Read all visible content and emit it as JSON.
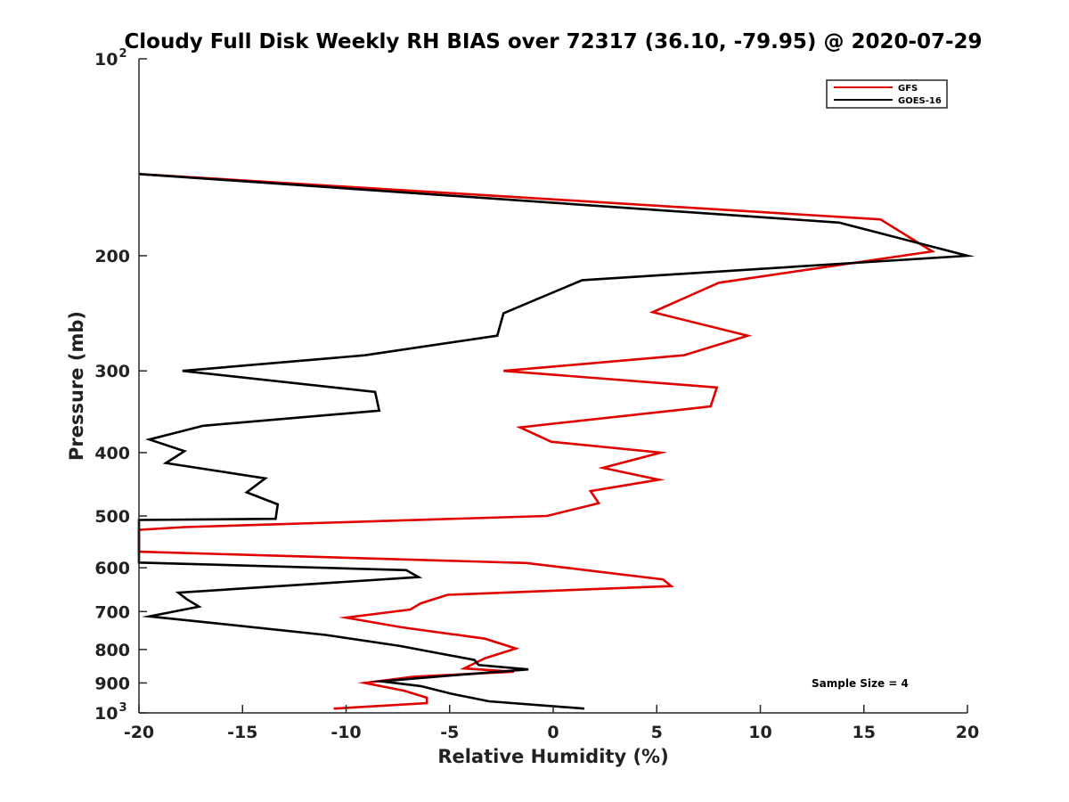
{
  "chart_data": {
    "type": "line",
    "title": "Cloudy Full Disk Weekly RH BIAS over 72317 (36.10, -79.95) @ 2020-07-29",
    "xlabel": "Relative Humidity (%)",
    "ylabel": "Pressure (mb)",
    "xlim": [
      -20,
      20
    ],
    "ylim": [
      100,
      1000
    ],
    "yscale": "log",
    "y_reversed": true,
    "x_ticks": [
      "-20",
      "-15",
      "-10",
      "-5",
      "0",
      "5",
      "10",
      "15",
      "20"
    ],
    "y_ticks": [
      {
        "value": 100,
        "base": "10",
        "exp": "2"
      },
      {
        "value": 200,
        "label": "200"
      },
      {
        "value": 300,
        "label": "300"
      },
      {
        "value": 400,
        "label": "400"
      },
      {
        "value": 500,
        "label": "500"
      },
      {
        "value": 600,
        "label": "600"
      },
      {
        "value": 700,
        "label": "700"
      },
      {
        "value": 800,
        "label": "800"
      },
      {
        "value": 900,
        "label": "900"
      },
      {
        "value": 1000,
        "base": "10",
        "exp": "3"
      }
    ],
    "legend_position": "top-right",
    "annotation": "Sample Size = 4",
    "series": [
      {
        "name": "GFS",
        "color": "#e00000",
        "points": [
          [
            -20,
            150
          ],
          [
            15.8,
            176
          ],
          [
            18.3,
            197
          ],
          [
            8.0,
            220
          ],
          [
            4.8,
            244
          ],
          [
            9.4,
            265
          ],
          [
            6.3,
            284
          ],
          [
            -2.4,
            300
          ],
          [
            7.9,
            318
          ],
          [
            7.6,
            340
          ],
          [
            -1.6,
            366
          ],
          [
            -0.1,
            385
          ],
          [
            5.2,
            400
          ],
          [
            2.4,
            422
          ],
          [
            5.1,
            440
          ],
          [
            1.8,
            458
          ],
          [
            2.2,
            478
          ],
          [
            -0.3,
            500
          ],
          [
            -17.8,
            520
          ],
          [
            -20,
            525
          ],
          [
            -20,
            567
          ],
          [
            -1.3,
            590
          ],
          [
            5.3,
            625
          ],
          [
            5.7,
            640
          ],
          [
            -5.1,
            660
          ],
          [
            -6.4,
            680
          ],
          [
            -6.9,
            695
          ],
          [
            -10.0,
            715
          ],
          [
            -7.3,
            740
          ],
          [
            -3.3,
            770
          ],
          [
            -1.8,
            797
          ],
          [
            -3.3,
            825
          ],
          [
            -4.3,
            855
          ],
          [
            -1.9,
            865
          ],
          [
            -6.7,
            880
          ],
          [
            -9.1,
            900
          ],
          [
            -7.2,
            925
          ],
          [
            -6.1,
            948
          ],
          [
            -6.1,
            966
          ],
          [
            -10.6,
            985
          ]
        ]
      },
      {
        "name": "GOES-16",
        "color": "#000000",
        "points": [
          [
            -20,
            150
          ],
          [
            13.8,
            178
          ],
          [
            20.0,
            200
          ],
          [
            1.4,
            218
          ],
          [
            -2.4,
            245
          ],
          [
            -2.7,
            265
          ],
          [
            -9.1,
            284
          ],
          [
            -17.9,
            300
          ],
          [
            -8.6,
            323
          ],
          [
            -8.4,
            345
          ],
          [
            -16.9,
            364
          ],
          [
            -19.5,
            382
          ],
          [
            -17.8,
            398
          ],
          [
            -18.7,
            415
          ],
          [
            -13.9,
            438
          ],
          [
            -14.8,
            460
          ],
          [
            -13.3,
            480
          ],
          [
            -13.4,
            505
          ],
          [
            -20,
            507
          ],
          [
            -20,
            589
          ],
          [
            -7.1,
            605
          ],
          [
            -6.5,
            620
          ],
          [
            -18.1,
            655
          ],
          [
            -17.7,
            670
          ],
          [
            -17.1,
            688
          ],
          [
            -19.5,
            712
          ],
          [
            -16.2,
            730
          ],
          [
            -11.0,
            760
          ],
          [
            -7.4,
            790
          ],
          [
            -3.8,
            830
          ],
          [
            -3.6,
            845
          ],
          [
            -1.2,
            858
          ],
          [
            -5.6,
            880
          ],
          [
            -8.3,
            895
          ],
          [
            -6.4,
            910
          ],
          [
            -4.9,
            935
          ],
          [
            -3.1,
            960
          ],
          [
            1.5,
            985
          ]
        ]
      }
    ]
  }
}
